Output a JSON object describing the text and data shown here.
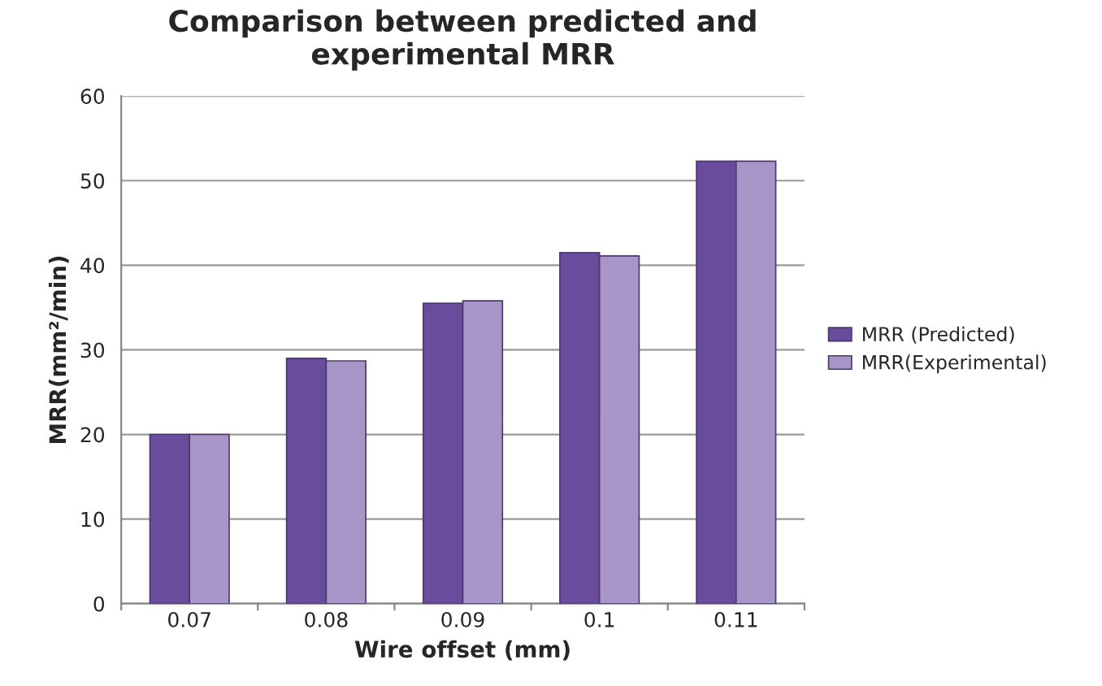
{
  "chart_data": {
    "type": "bar",
    "title": "Comparison between predicted and\nexperimental MRR",
    "xlabel": "Wire offset (mm)",
    "ylabel": "MRR(mm²/min)",
    "categories": [
      "0.07",
      "0.08",
      "0.09",
      "0.1",
      "0.11"
    ],
    "series": [
      {
        "name": "MRR (Predicted)",
        "color": "#6a4c9c",
        "values": [
          20.0,
          29.0,
          35.5,
          41.5,
          52.3
        ]
      },
      {
        "name": "MRR(Experimental)",
        "color": "#a896c8",
        "values": [
          20.0,
          28.7,
          35.8,
          41.1,
          52.3
        ]
      }
    ],
    "ylim": [
      0,
      60
    ],
    "yticks": [
      0,
      10,
      20,
      30,
      40,
      50,
      60
    ],
    "grid": "y",
    "legend": "right"
  }
}
